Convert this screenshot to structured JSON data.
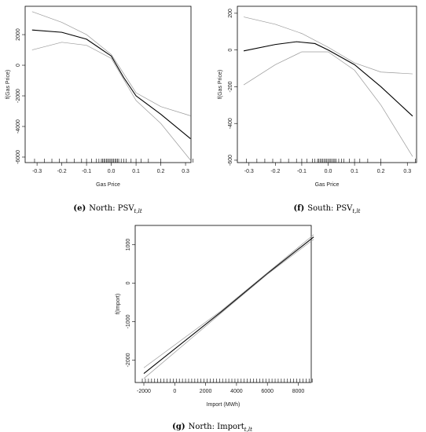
{
  "chart_data": [
    {
      "type": "line",
      "xlabel": "Gas Price",
      "ylabel": "f(Gas Price)",
      "caption": {
        "label": "(e)",
        "text": "North: PSV",
        "sub": "t,lt"
      },
      "xlim": [
        -0.348,
        0.322
      ],
      "ylim": [
        -6360,
        3850
      ],
      "xticks": [
        -0.3,
        -0.2,
        -0.1,
        {
          "value": 0,
          "label": "0.0"
        },
        0.1,
        0.2,
        0.3
      ],
      "yticks": [
        -6000,
        -4000,
        -2000,
        0,
        2000
      ],
      "series": [
        {
          "color": "#000000",
          "x": [
            -0.32,
            -0.2,
            -0.1,
            0,
            0.05,
            0.1,
            0.2,
            0.32
          ],
          "values": [
            2300,
            2150,
            1700,
            600,
            -800,
            -2000,
            -3200,
            -4800
          ]
        },
        {
          "color": "#9a9a9a",
          "x": [
            -0.32,
            -0.2,
            -0.1,
            0,
            0.1,
            0.2,
            0.32
          ],
          "values": [
            3500,
            2800,
            2000,
            700,
            -1800,
            -2700,
            -3300
          ]
        },
        {
          "color": "#9a9a9a",
          "x": [
            -0.32,
            -0.2,
            -0.1,
            0,
            0.1,
            0.2,
            0.32
          ],
          "values": [
            1000,
            1500,
            1300,
            450,
            -2300,
            -3800,
            -6200
          ]
        }
      ],
      "rug": [
        -0.31,
        -0.27,
        -0.24,
        -0.21,
        -0.18,
        -0.15,
        -0.12,
        -0.1,
        -0.08,
        -0.06,
        -0.05,
        -0.04,
        -0.035,
        -0.03,
        -0.025,
        -0.02,
        -0.015,
        -0.01,
        -0.005,
        0,
        0.005,
        0.01,
        0.015,
        0.02,
        0.025,
        0.03,
        0.04,
        0.05,
        0.06,
        0.08,
        0.1,
        0.12,
        0.15,
        0.2,
        0.33
      ]
    },
    {
      "type": "line",
      "xlabel": "Gas Price",
      "ylabel": "f(Gas Price)",
      "caption": {
        "label": "(f)",
        "text": "South: PSV",
        "sub": "t,lt"
      },
      "xlim": [
        -0.344,
        0.335
      ],
      "ylim": [
        -613,
        238
      ],
      "xticks": [
        -0.3,
        -0.2,
        -0.1,
        {
          "value": 0,
          "label": "0.0"
        },
        0.1,
        0.2,
        0.3
      ],
      "yticks": [
        -600,
        -400,
        -200,
        0,
        200
      ],
      "series": [
        {
          "color": "#000000",
          "x": [
            -0.32,
            -0.2,
            -0.12,
            -0.05,
            0,
            0.1,
            0.2,
            0.32
          ],
          "values": [
            -5,
            30,
            45,
            35,
            0,
            -80,
            -200,
            -360
          ]
        },
        {
          "color": "#9a9a9a",
          "x": [
            -0.32,
            -0.2,
            -0.1,
            0,
            0.1,
            0.2,
            0.32
          ],
          "values": [
            180,
            140,
            90,
            15,
            -70,
            -120,
            -130
          ]
        },
        {
          "color": "#9a9a9a",
          "x": [
            -0.32,
            -0.2,
            -0.1,
            0,
            0.1,
            0.2,
            0.32
          ],
          "values": [
            -190,
            -80,
            -10,
            -10,
            -110,
            -300,
            -580
          ]
        }
      ],
      "rug": [
        -0.31,
        -0.27,
        -0.24,
        -0.21,
        -0.18,
        -0.15,
        -0.12,
        -0.1,
        -0.08,
        -0.06,
        -0.05,
        -0.04,
        -0.035,
        -0.03,
        -0.025,
        -0.02,
        -0.015,
        -0.01,
        -0.005,
        0,
        0.005,
        0.01,
        0.015,
        0.02,
        0.025,
        0.03,
        0.04,
        0.05,
        0.06,
        0.08,
        0.1,
        0.12,
        0.15,
        0.2,
        0.33
      ]
    },
    {
      "type": "line",
      "xlabel": "Import (MWh)",
      "ylabel": "f(Import)",
      "caption": {
        "label": "(g)",
        "text": "North: Import",
        "sub": "t,lt"
      },
      "xlim": [
        -2560,
        8840
      ],
      "ylim": [
        -2583,
        1500
      ],
      "xticks": [
        -2000,
        0,
        2000,
        4000,
        6000,
        8000
      ],
      "yticks": [
        -2000,
        -1000,
        0,
        1000
      ],
      "series": [
        {
          "color": "#000000",
          "x": [
            -2000,
            3000,
            6000,
            9000
          ],
          "values": [
            -2350,
            -750,
            250,
            1200
          ]
        },
        {
          "color": "#9a9a9a",
          "x": [
            -2000,
            3000,
            6000,
            9000
          ],
          "values": [
            -2200,
            -720,
            270,
            1260
          ]
        },
        {
          "color": "#9a9a9a",
          "x": [
            -2000,
            3000,
            6000,
            9000
          ],
          "values": [
            -2480,
            -780,
            230,
            1140
          ]
        }
      ],
      "rug": [
        -2100,
        -1900,
        -1700,
        -1500,
        -1300,
        -1100,
        -900,
        -700,
        -500,
        -300,
        -100,
        100,
        300,
        500,
        700,
        900,
        1100,
        1300,
        1500,
        1700,
        1900,
        2100,
        2300,
        2500,
        2700,
        2900,
        3100,
        3300,
        3500,
        3700,
        3900,
        4100,
        4300,
        4500,
        4700,
        4900,
        5100,
        5300,
        5500,
        5700,
        5900,
        6100,
        6300,
        6500,
        6700,
        6900,
        7100,
        7300,
        7500,
        7700,
        7900,
        8100,
        8300,
        8500,
        8700,
        8900
      ]
    }
  ]
}
